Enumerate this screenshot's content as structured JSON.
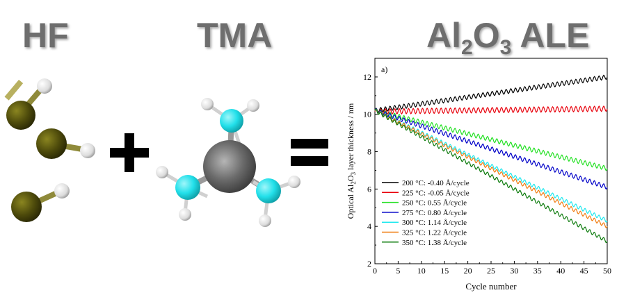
{
  "headings": {
    "hf": "HF",
    "tma": "TMA",
    "ale_prefix": "Al",
    "ale_sub1": "2",
    "ale_mid": "O",
    "ale_sub2": "3",
    "ale_suffix": " ALE"
  },
  "symbols": {
    "plus": "plus-sign",
    "equals": "equals-sign"
  },
  "colors": {
    "fluorine": "#4d4a0b",
    "hydrogen": "#f2f2f2",
    "carbon": "#1a1a1a",
    "aluminum": "#6a6a6a",
    "tma_hydrogen_group": "#22e0ea",
    "heading": "#6e6e6e"
  },
  "chart_data": {
    "type": "line",
    "panel_label": "a)",
    "xlabel": "Cycle number",
    "ylabel_parts": [
      "Optical Al",
      "2",
      "O",
      "3",
      " layer thickness / nm"
    ],
    "xlim": [
      0,
      50
    ],
    "ylim": [
      2,
      13
    ],
    "x_ticks": [
      0,
      5,
      10,
      15,
      20,
      25,
      30,
      35,
      40,
      45,
      50
    ],
    "y_ticks": [
      2,
      4,
      6,
      8,
      10,
      12
    ],
    "legend_position": "bottom-left",
    "series": [
      {
        "name": "200 °C: -0.40 Å/cycle",
        "color": "#000000",
        "start": 10.2,
        "end": 12.0,
        "ripple": 0.12
      },
      {
        "name": "225 °C: -0.05 Å/cycle",
        "color": "#e8000b",
        "start": 10.15,
        "end": 10.3,
        "ripple": 0.14
      },
      {
        "name": "250 °C: 0.55 Å/cycle",
        "color": "#22e022",
        "start": 10.2,
        "end": 7.1,
        "ripple": 0.12
      },
      {
        "name": "275 °C: 0.80 Å/cycle",
        "color": "#0000c8",
        "start": 10.2,
        "end": 6.1,
        "ripple": 0.12
      },
      {
        "name": "300 °C: 1.14 Å/cycle",
        "color": "#1ee8ee",
        "start": 10.2,
        "end": 4.3,
        "ripple": 0.1
      },
      {
        "name": "325 °C: 1.22 Å/cycle",
        "color": "#f07c10",
        "start": 10.2,
        "end": 4.0,
        "ripple": 0.1
      },
      {
        "name": "350 °C: 1.38 Å/cycle",
        "color": "#0a7a0a",
        "start": 10.2,
        "end": 3.2,
        "ripple": 0.1
      }
    ]
  }
}
